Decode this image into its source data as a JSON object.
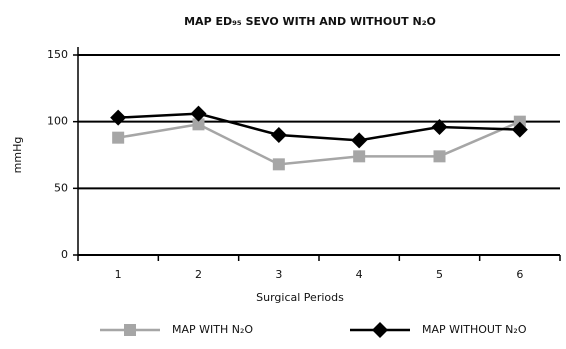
{
  "chart_data": {
    "type": "line",
    "title": "MAP ED₉₅ SEVO WITH AND WITHOUT N₂O",
    "x_label": "Surgical Periods",
    "y_label": "mmHg",
    "categories": [
      "1",
      "2",
      "3",
      "4",
      "5",
      "6"
    ],
    "series": [
      {
        "name": "MAP WITH N₂O",
        "color": "#a6a6a6",
        "marker": "square",
        "values": [
          88,
          98,
          68,
          74,
          74,
          100
        ]
      },
      {
        "name": "MAP WITHOUT N₂O",
        "color": "#000000",
        "marker": "diamond",
        "values": [
          103,
          106,
          90,
          86,
          96,
          94
        ]
      }
    ],
    "ylim": [
      0,
      150
    ],
    "yticks": [
      0,
      50,
      100,
      150
    ],
    "grid": true
  }
}
